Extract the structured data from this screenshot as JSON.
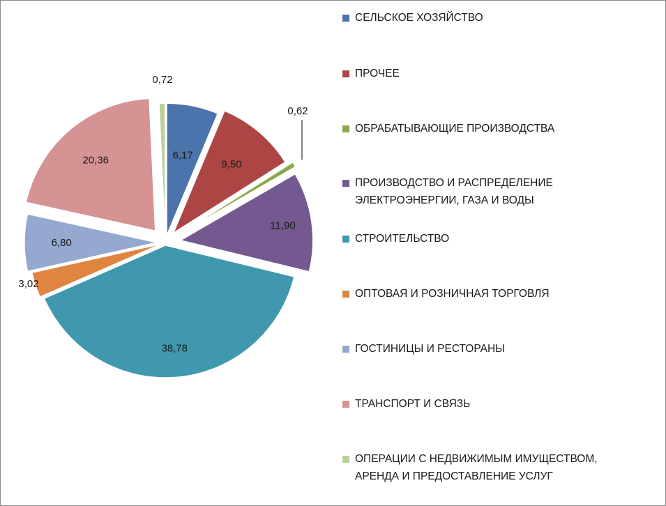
{
  "chart_data": {
    "type": "pie",
    "series": [
      {
        "name": "СЕЛЬСКОЕ ХОЗЯЙСТВО",
        "value": 6.17,
        "label": "6,17",
        "color": "#4a74ab"
      },
      {
        "name": "ПРОЧЕЕ",
        "value": 9.5,
        "label": "9,50",
        "color": "#ad4544"
      },
      {
        "name": "ОБРАБАТЫВАЮЩИЕ ПРОИЗВОДСТВА",
        "value": 0.62,
        "label": "0,62",
        "color": "#8aa847"
      },
      {
        "name": "ПРОИЗВОДСТВО И РАСПРЕДЕЛЕНИЕ\nЭЛЕКТРОЭНЕРГИИ,  ГАЗА И ВОДЫ",
        "value": 11.9,
        "label": "11,90",
        "color": "#73598f"
      },
      {
        "name": "СТРОИТЕЛЬСТВО",
        "value": 38.78,
        "label": "38,78",
        "color": "#3f98ae"
      },
      {
        "name": "ОПТОВАЯ И РОЗНИЧНАЯ ТОРГОВЛЯ",
        "value": 3.02,
        "label": "3,02",
        "color": "#df8540"
      },
      {
        "name": "ГОСТИНИЦЫ И РЕСТОРАНЫ",
        "value": 6.8,
        "label": "6,80",
        "color": "#94a8d0"
      },
      {
        "name": "ТРАНСПОРТ И СВЯЗЬ",
        "value": 20.36,
        "label": "20,36",
        "color": "#d69393"
      },
      {
        "name": "ОПЕРАЦИИ С НЕДВИЖИМЫМ ИМУЩЕСТВОМ,\nАРЕНДА И  ПРЕДОСТАВЛЕНИЕ УСЛУГ",
        "value": 0.72,
        "label": "0,72",
        "color": "#b9d197"
      }
    ],
    "legend_position": "right",
    "exploded": true
  }
}
